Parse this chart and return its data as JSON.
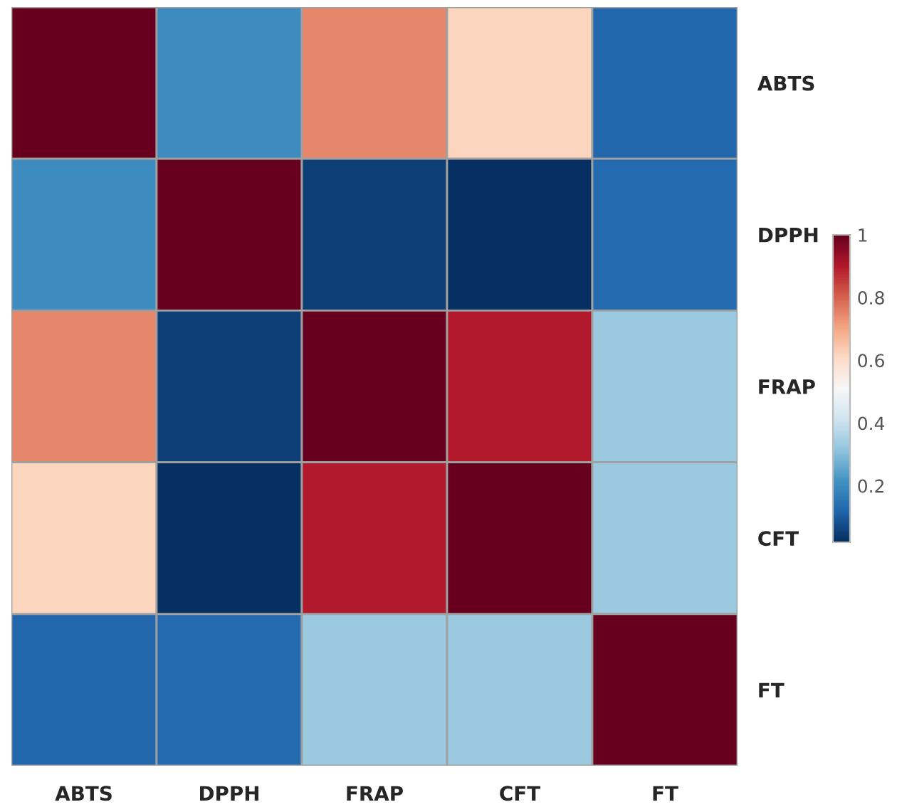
{
  "chart_data": {
    "type": "heatmap",
    "categories": [
      "ABTS",
      "DPPH",
      "FRAP",
      "CFT",
      "FT"
    ],
    "y_categories": [
      "ABTS",
      "DPPH",
      "FRAP",
      "CFT",
      "FT"
    ],
    "cells": [
      [
        1,
        0.2,
        0.75,
        0.62,
        0.12
      ],
      [
        0.2,
        1,
        0.05,
        0.02,
        0.13
      ],
      [
        0.75,
        0.05,
        1,
        0.9,
        0.33
      ],
      [
        0.62,
        0.02,
        0.9,
        1,
        0.33
      ],
      [
        0.12,
        0.13,
        0.33,
        0.33,
        1
      ]
    ],
    "clim": [
      0.02,
      1
    ],
    "cticks": [
      0.2,
      0.4,
      0.6,
      0.8,
      1
    ]
  }
}
